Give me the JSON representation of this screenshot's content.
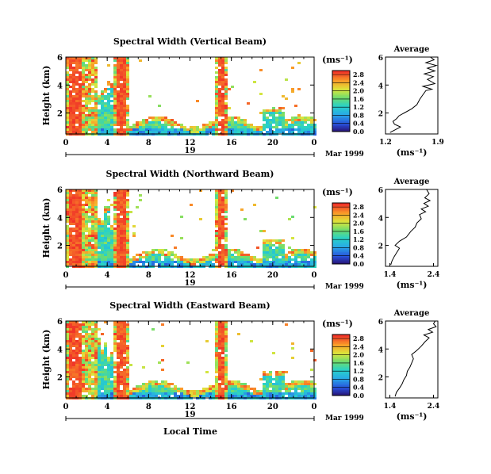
{
  "colorbar_unit": "(ms⁻¹)",
  "date_label": "Mar 1999",
  "date_day": "19",
  "x_axis_label": "Local Time",
  "colors": {
    "low": "#2a1e96",
    "mid": "#28c8c8",
    "high": "#f03c28"
  },
  "chart_data": [
    {
      "type": "heatmap",
      "title": "Spectral Width (Vertical Beam)",
      "ylabel": "Height (km)",
      "ylim": [
        0.5,
        6
      ],
      "yticks": [
        "2",
        "4",
        "6"
      ],
      "xlim": [
        0,
        24
      ],
      "xticks": [
        "0",
        "4",
        "8",
        "12",
        "16",
        "20",
        "0"
      ],
      "colorbar": {
        "ticks": [
          "0.0",
          "0.4",
          "0.8",
          "1.2",
          "1.6",
          "2.0",
          "2.4",
          "2.8"
        ],
        "range": [
          0.0,
          3.0
        ]
      },
      "profile": {
        "title": "Average",
        "xlabel": "(ms⁻¹)",
        "xticks": [
          "1.2",
          "1.9"
        ],
        "xlim": [
          1.2,
          1.9
        ],
        "ylim": [
          0.5,
          6
        ],
        "yticks": [
          "2",
          "4",
          "6"
        ],
        "points": [
          [
            1.26,
            0.6
          ],
          [
            1.33,
            0.8
          ],
          [
            1.4,
            1.0
          ],
          [
            1.32,
            1.2
          ],
          [
            1.3,
            1.4
          ],
          [
            1.35,
            1.6
          ],
          [
            1.38,
            1.8
          ],
          [
            1.45,
            2.0
          ],
          [
            1.55,
            2.3
          ],
          [
            1.62,
            2.6
          ],
          [
            1.66,
            3.0
          ],
          [
            1.7,
            3.3
          ],
          [
            1.74,
            3.6
          ],
          [
            1.82,
            3.7
          ],
          [
            1.7,
            3.9
          ],
          [
            1.86,
            4.1
          ],
          [
            1.76,
            4.4
          ],
          [
            1.84,
            4.6
          ],
          [
            1.72,
            4.8
          ],
          [
            1.86,
            5.0
          ],
          [
            1.76,
            5.2
          ],
          [
            1.88,
            5.4
          ],
          [
            1.74,
            5.6
          ],
          [
            1.85,
            5.8
          ],
          [
            1.8,
            6.0
          ]
        ]
      }
    },
    {
      "type": "heatmap",
      "title": "Spectral Width (Northward Beam)",
      "ylabel": "Height (km)",
      "ylim": [
        0.5,
        6
      ],
      "yticks": [
        "2",
        "4",
        "6"
      ],
      "xlim": [
        0,
        24
      ],
      "xticks": [
        "0",
        "4",
        "8",
        "12",
        "16",
        "20",
        "0"
      ],
      "colorbar": {
        "ticks": [
          "0.0",
          "0.4",
          "0.8",
          "1.2",
          "1.6",
          "2.0",
          "2.4",
          "2.8"
        ],
        "range": [
          0.0,
          3.0
        ]
      },
      "profile": {
        "title": "Average",
        "xlabel": "(ms⁻¹)",
        "xticks": [
          "1.4",
          "2.4"
        ],
        "xlim": [
          1.3,
          2.5
        ],
        "ylim": [
          0.5,
          6
        ],
        "yticks": [
          "2",
          "4",
          "6"
        ],
        "points": [
          [
            1.42,
            0.6
          ],
          [
            1.45,
            0.9
          ],
          [
            1.5,
            1.2
          ],
          [
            1.56,
            1.5
          ],
          [
            1.62,
            1.8
          ],
          [
            1.52,
            2.0
          ],
          [
            1.62,
            2.3
          ],
          [
            1.78,
            2.6
          ],
          [
            1.88,
            3.0
          ],
          [
            1.98,
            3.3
          ],
          [
            2.02,
            3.6
          ],
          [
            2.12,
            3.9
          ],
          [
            2.08,
            4.2
          ],
          [
            2.22,
            4.4
          ],
          [
            2.12,
            4.6
          ],
          [
            2.28,
            4.8
          ],
          [
            2.18,
            5.0
          ],
          [
            2.32,
            5.2
          ],
          [
            2.2,
            5.4
          ],
          [
            2.3,
            5.7
          ],
          [
            2.24,
            6.0
          ]
        ]
      }
    },
    {
      "type": "heatmap",
      "title": "Spectral Width (Eastward Beam)",
      "ylabel": "Height (km)",
      "ylim": [
        0.5,
        6
      ],
      "yticks": [
        "2",
        "4",
        "6"
      ],
      "xlim": [
        0,
        24
      ],
      "xticks": [
        "0",
        "4",
        "8",
        "12",
        "16",
        "20",
        "0"
      ],
      "colorbar": {
        "ticks": [
          "0.0",
          "0.4",
          "0.8",
          "1.2",
          "1.6",
          "2.0",
          "2.4",
          "2.8"
        ],
        "range": [
          0.0,
          3.0
        ]
      },
      "profile": {
        "title": "Average",
        "xlabel": "(ms⁻¹)",
        "xticks": [
          "1.4",
          "2.4"
        ],
        "xlim": [
          1.3,
          2.5
        ],
        "ylim": [
          0.5,
          6
        ],
        "yticks": [
          "2",
          "4",
          "6"
        ],
        "points": [
          [
            1.52,
            0.6
          ],
          [
            1.55,
            0.9
          ],
          [
            1.62,
            1.2
          ],
          [
            1.68,
            1.5
          ],
          [
            1.72,
            1.8
          ],
          [
            1.78,
            2.1
          ],
          [
            1.8,
            2.4
          ],
          [
            1.86,
            2.7
          ],
          [
            1.9,
            3.0
          ],
          [
            1.94,
            3.3
          ],
          [
            1.9,
            3.6
          ],
          [
            2.02,
            3.9
          ],
          [
            2.12,
            4.2
          ],
          [
            2.2,
            4.5
          ],
          [
            2.3,
            4.8
          ],
          [
            2.18,
            5.0
          ],
          [
            2.38,
            5.2
          ],
          [
            2.28,
            5.4
          ],
          [
            2.46,
            5.6
          ],
          [
            2.4,
            5.8
          ],
          [
            2.44,
            6.0
          ]
        ]
      }
    }
  ]
}
